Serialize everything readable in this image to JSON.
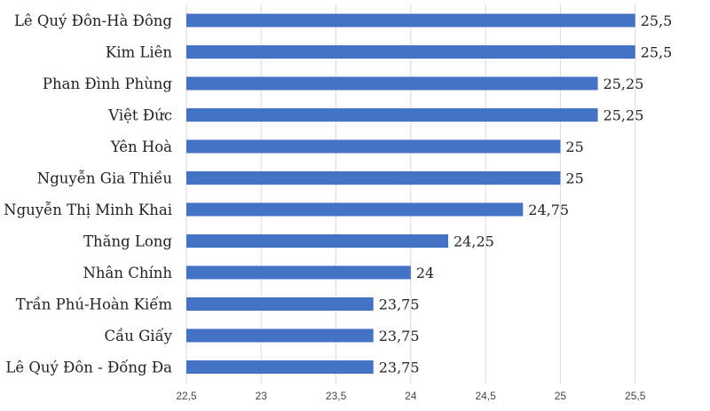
{
  "chart_data": {
    "type": "bar",
    "orientation": "horizontal",
    "categories": [
      "Lê Quý Đôn-Hà Đông",
      "Kim Liên",
      "Phan Đình Phùng",
      "Việt Đức",
      "Yên Hoà",
      "Nguyễn Gia Thiều",
      "Nguyễn Thị Minh Khai",
      "Thăng Long",
      "Nhân Chính",
      "Trần Phú-Hoàn Kiếm",
      "Cầu Giấy",
      "Lê Quý Đôn - Đống Đa"
    ],
    "values": [
      25.5,
      25.5,
      25.25,
      25.25,
      25,
      25,
      24.75,
      24.25,
      24,
      23.75,
      23.75,
      23.75
    ],
    "value_labels": [
      "25,5",
      "25,5",
      "25,25",
      "25,25",
      "25",
      "25",
      "24,75",
      "24,25",
      "24",
      "23,75",
      "23,75",
      "23,75"
    ],
    "xlim": [
      22.5,
      26
    ],
    "xticks": [
      22.5,
      23,
      23.5,
      24,
      24.5,
      25,
      25.5
    ],
    "xtick_labels": [
      "22,5",
      "23",
      "23,5",
      "24",
      "24,5",
      "25",
      "25,5"
    ],
    "grid": "vertical",
    "bar_color": "#4472c4",
    "title": "",
    "xlabel": "",
    "ylabel": ""
  }
}
